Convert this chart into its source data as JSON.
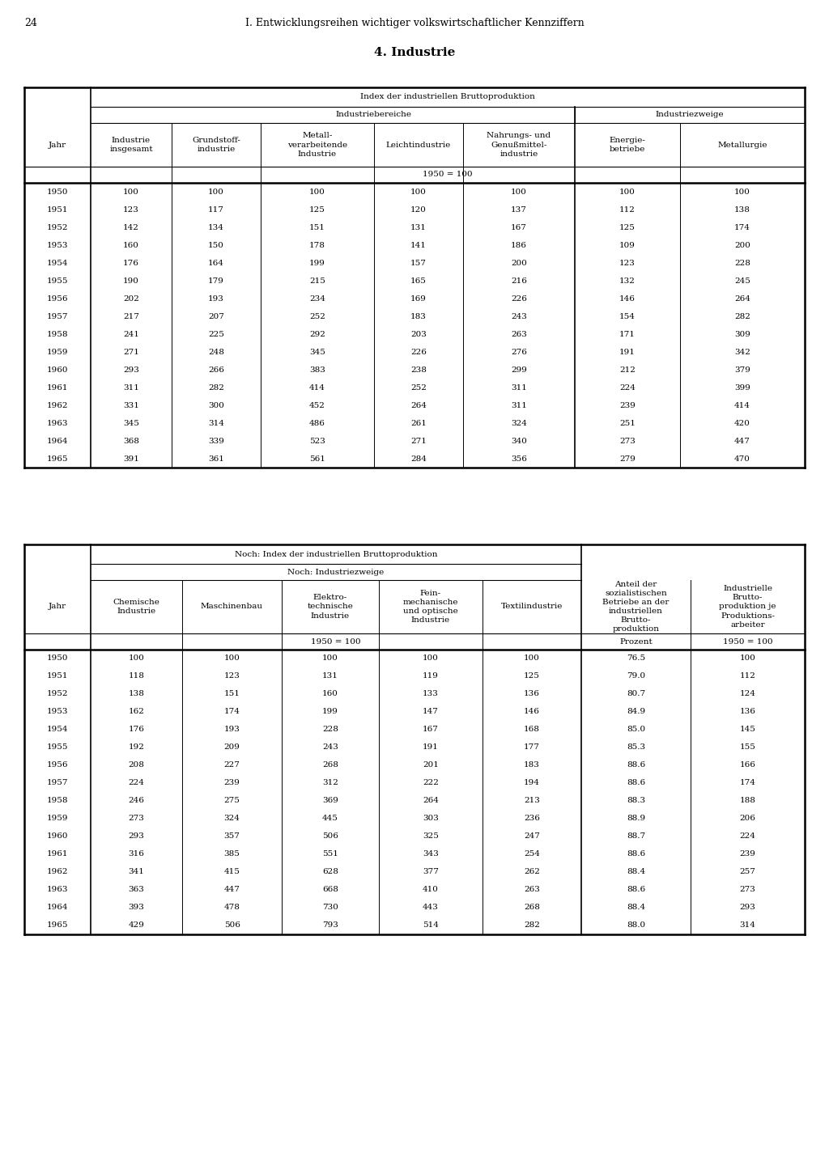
{
  "page_num": "24",
  "header": "I. Entwicklungsreihen wichtiger volkswirtschaftlicher Kennziffern",
  "section_title": "4. Industrie",
  "table1": {
    "title": "Index der industriellen Bruttoproduktion",
    "subtitle_left": "Industriebereiche",
    "subtitle_right": "Industriezweige",
    "col_headers": [
      "Jahr",
      "Industrie\ninsgesamt",
      "Grundstoff-\nindustrie",
      "Metall-\nverarbeitende\nIndustrie",
      "Leichtindustrie",
      "Nahrungs- und\nGenußmittel-\nindustrie",
      "Energie-\nbetriebe",
      "Metallurgie"
    ],
    "base_note": "1950 = 100",
    "years": [
      1950,
      1951,
      1952,
      1953,
      1954,
      1955,
      1956,
      1957,
      1958,
      1959,
      1960,
      1961,
      1962,
      1963,
      1964,
      1965
    ],
    "data": [
      [
        100,
        100,
        100,
        100,
        100,
        100,
        100
      ],
      [
        123,
        117,
        125,
        120,
        137,
        112,
        138
      ],
      [
        142,
        134,
        151,
        131,
        167,
        125,
        174
      ],
      [
        160,
        150,
        178,
        141,
        186,
        109,
        200
      ],
      [
        176,
        164,
        199,
        157,
        200,
        123,
        228
      ],
      [
        190,
        179,
        215,
        165,
        216,
        132,
        245
      ],
      [
        202,
        193,
        234,
        169,
        226,
        146,
        264
      ],
      [
        217,
        207,
        252,
        183,
        243,
        154,
        282
      ],
      [
        241,
        225,
        292,
        203,
        263,
        171,
        309
      ],
      [
        271,
        248,
        345,
        226,
        276,
        191,
        342
      ],
      [
        293,
        266,
        383,
        238,
        299,
        212,
        379
      ],
      [
        311,
        282,
        414,
        252,
        311,
        224,
        399
      ],
      [
        331,
        300,
        452,
        264,
        311,
        239,
        414
      ],
      [
        345,
        314,
        486,
        261,
        324,
        251,
        420
      ],
      [
        368,
        339,
        523,
        271,
        340,
        273,
        447
      ],
      [
        391,
        361,
        561,
        284,
        356,
        279,
        470
      ]
    ]
  },
  "table2": {
    "title": "Noch: Index der industriellen Bruttoproduktion",
    "subtitle_left": "Noch: Industriezweige",
    "col_headers_left": [
      "Jahr",
      "Chemische\nIndustrie",
      "Maschinenbau",
      "Elektro-\ntechnische\nIndustrie",
      "Fein-\nmechanische\nund optische\nIndustrie",
      "Textilindustrie"
    ],
    "col_headers_right": [
      "Anteil der\nsozialistischen\nBetriebe an der\nindustriellen\nBrutto-\nproduktion",
      "Industrielle\nBrutto-\nproduktion je\nProduktions-\narbeiter"
    ],
    "base_note_left": "1950 = 100",
    "base_note_right_1": "Prozent",
    "base_note_right_2": "1950 = 100",
    "years": [
      1950,
      1951,
      1952,
      1953,
      1954,
      1955,
      1956,
      1957,
      1958,
      1959,
      1960,
      1961,
      1962,
      1963,
      1964,
      1965
    ],
    "data": [
      [
        100,
        100,
        100,
        100,
        100,
        76.5,
        100
      ],
      [
        118,
        123,
        131,
        119,
        125,
        79.0,
        112
      ],
      [
        138,
        151,
        160,
        133,
        136,
        80.7,
        124
      ],
      [
        162,
        174,
        199,
        147,
        146,
        84.9,
        136
      ],
      [
        176,
        193,
        228,
        167,
        168,
        85.0,
        145
      ],
      [
        192,
        209,
        243,
        191,
        177,
        85.3,
        155
      ],
      [
        208,
        227,
        268,
        201,
        183,
        88.6,
        166
      ],
      [
        224,
        239,
        312,
        222,
        194,
        88.6,
        174
      ],
      [
        246,
        275,
        369,
        264,
        213,
        88.3,
        188
      ],
      [
        273,
        324,
        445,
        303,
        236,
        88.9,
        206
      ],
      [
        293,
        357,
        506,
        325,
        247,
        88.7,
        224
      ],
      [
        316,
        385,
        551,
        343,
        254,
        88.6,
        239
      ],
      [
        341,
        415,
        628,
        377,
        262,
        88.4,
        257
      ],
      [
        363,
        447,
        668,
        410,
        263,
        88.6,
        273
      ],
      [
        393,
        478,
        730,
        443,
        268,
        88.4,
        293
      ],
      [
        429,
        506,
        793,
        514,
        282,
        88.0,
        314
      ]
    ]
  }
}
